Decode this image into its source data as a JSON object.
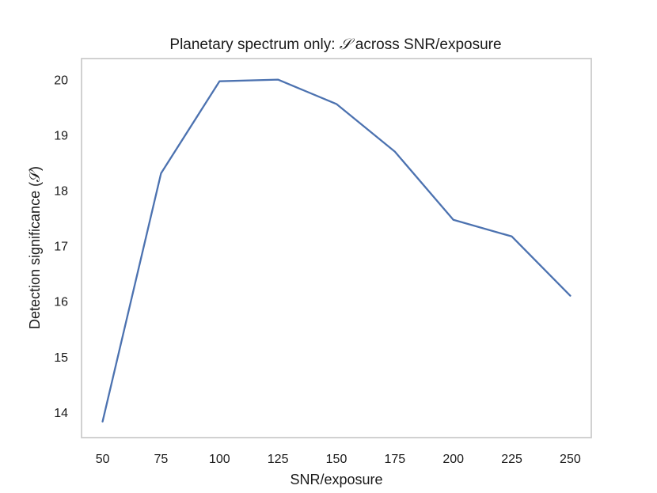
{
  "chart_data": {
    "type": "line",
    "title": "Planetary spectrum only: 𝒮 across SNR/exposure",
    "title_parts": {
      "prefix": "Planetary spectrum only: ",
      "symbol": "𝒮",
      "suffix": " across SNR/exposure"
    },
    "xlabel": "SNR/exposure",
    "ylabel": "Detection significance (𝒮)",
    "x": [
      50,
      75,
      100,
      125,
      150,
      175,
      200,
      225,
      250
    ],
    "x_tick_labels": [
      "50",
      "75",
      "100",
      "125",
      "150",
      "175",
      "200",
      "225",
      "250"
    ],
    "y_ticks": [
      14,
      15,
      16,
      17,
      18,
      19,
      20
    ],
    "y_tick_labels": [
      "14",
      "15",
      "16",
      "17",
      "18",
      "19",
      "20"
    ],
    "series": [
      {
        "values": [
          13.83,
          18.31,
          19.97,
          20.0,
          19.56,
          18.7,
          17.47,
          17.17,
          16.1
        ],
        "color": "#4c72b0"
      }
    ],
    "xlim": [
      41,
      259
    ],
    "ylim": [
      13.54,
      20.38
    ],
    "grid": false,
    "legend": "none",
    "frame_color": "#cccccc"
  }
}
